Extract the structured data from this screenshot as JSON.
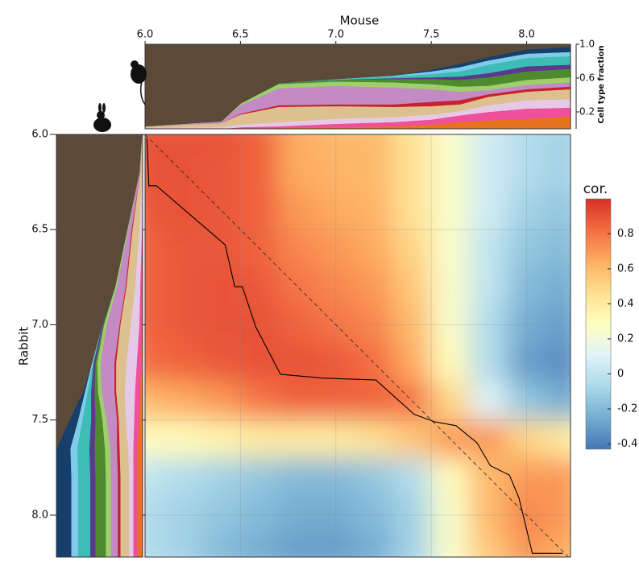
{
  "chart_data": [
    {
      "type": "heatmap",
      "x_label": "Mouse",
      "y_label": "Rabbit",
      "x": [
        6.0,
        6.2,
        6.4,
        6.6,
        6.8,
        7.0,
        7.2,
        7.4,
        7.6,
        7.8,
        8.0,
        8.2
      ],
      "y": [
        6.0,
        6.2,
        6.4,
        6.6,
        6.8,
        7.0,
        7.2,
        7.4,
        7.6,
        7.8,
        8.0,
        8.2
      ],
      "z": [
        [
          0.9,
          0.9,
          0.9,
          0.85,
          0.65,
          0.6,
          0.6,
          0.45,
          0.25,
          0.05,
          -0.05,
          -0.1
        ],
        [
          0.9,
          0.9,
          0.88,
          0.85,
          0.65,
          0.62,
          0.6,
          0.45,
          0.25,
          0.05,
          -0.05,
          -0.1
        ],
        [
          0.88,
          0.9,
          0.88,
          0.85,
          0.7,
          0.65,
          0.62,
          0.45,
          0.25,
          0.05,
          -0.1,
          -0.15
        ],
        [
          0.85,
          0.88,
          0.88,
          0.85,
          0.75,
          0.7,
          0.65,
          0.5,
          0.25,
          0.0,
          -0.15,
          -0.2
        ],
        [
          0.85,
          0.88,
          0.9,
          0.88,
          0.8,
          0.75,
          0.7,
          0.55,
          0.25,
          0.0,
          -0.2,
          -0.25
        ],
        [
          0.85,
          0.88,
          0.9,
          0.9,
          0.85,
          0.8,
          0.75,
          0.6,
          0.25,
          -0.05,
          -0.25,
          -0.3
        ],
        [
          0.82,
          0.85,
          0.88,
          0.9,
          0.9,
          0.88,
          0.82,
          0.65,
          0.3,
          -0.05,
          -0.3,
          -0.35
        ],
        [
          0.6,
          0.65,
          0.7,
          0.8,
          0.85,
          0.85,
          0.85,
          0.8,
          0.5,
          0.1,
          -0.15,
          -0.25
        ],
        [
          0.3,
          0.3,
          0.35,
          0.4,
          0.4,
          0.4,
          0.45,
          0.55,
          0.7,
          0.7,
          0.5,
          0.4
        ],
        [
          0.0,
          -0.05,
          -0.1,
          -0.15,
          -0.2,
          -0.2,
          -0.15,
          -0.05,
          0.3,
          0.6,
          0.7,
          0.7
        ],
        [
          -0.05,
          -0.1,
          -0.15,
          -0.2,
          -0.25,
          -0.25,
          -0.2,
          -0.1,
          0.25,
          0.6,
          0.75,
          0.7
        ],
        [
          -0.05,
          -0.1,
          -0.2,
          -0.25,
          -0.3,
          -0.3,
          -0.25,
          -0.1,
          0.25,
          0.55,
          0.7,
          0.65
        ]
      ],
      "xlim": [
        6.0,
        8.23
      ],
      "ylim": [
        6.0,
        8.22
      ],
      "xticks": [
        {
          "value": 6.0,
          "label": "6.0"
        },
        6.5,
        {
          "value": 7.0,
          "label": "7.0"
        },
        7.5,
        {
          "value": 8.0,
          "label": "8.0"
        }
      ],
      "yticks": [
        {
          "value": 6.0,
          "label": "6.0"
        },
        6.5,
        {
          "value": 7.0,
          "label": "7.0"
        },
        7.5,
        {
          "value": 8.0,
          "label": "8.0"
        }
      ],
      "grid": true,
      "colorbar": {
        "label": "cor.",
        "clim": [
          -0.43,
          1.0
        ],
        "ticks": [
          -0.4,
          -0.2,
          0,
          0.2,
          0.4,
          0.6,
          0.8
        ],
        "colors": [
          "#4575b4",
          "#74add1",
          "#abd9e9",
          "#e0f3f8",
          "#ffffbf",
          "#fee090",
          "#fdae61",
          "#f46d43",
          "#d73027"
        ]
      },
      "path": {
        "color": "#000000",
        "x": [
          6.01,
          6.02,
          6.06,
          6.42,
          6.47,
          6.51,
          6.58,
          6.71,
          6.93,
          7.21,
          7.41,
          7.52,
          7.63,
          7.74,
          7.81,
          7.91,
          7.96,
          8.03,
          8.19
        ],
        "y": [
          6.02,
          6.27,
          6.27,
          6.58,
          6.8,
          6.8,
          7.01,
          7.26,
          7.28,
          7.29,
          7.47,
          7.51,
          7.53,
          7.62,
          7.74,
          7.79,
          7.91,
          8.2,
          8.2
        ]
      },
      "diagonal": true
    },
    {
      "type": "area",
      "y_label": "Cell type fraction",
      "x": [
        6.0,
        6.4,
        6.5,
        6.7,
        7.0,
        7.3,
        7.5,
        7.65,
        7.8,
        8.0,
        8.23
      ],
      "xlim": [
        6.0,
        8.23
      ],
      "ylim": [
        0,
        1
      ],
      "yticks": [
        0.2,
        0.6,
        {
          "value": 1.0,
          "label": "1.0"
        }
      ],
      "series": [
        {
          "color": "#e8731e",
          "values": [
            0.0,
            0.0,
            0.01,
            0.01,
            0.02,
            0.03,
            0.05,
            0.08,
            0.1,
            0.12,
            0.15
          ]
        },
        {
          "color": "#ef4f9b",
          "values": [
            0.0,
            0.0,
            0.01,
            0.02,
            0.04,
            0.05,
            0.06,
            0.08,
            0.1,
            0.12,
            0.1
          ]
        },
        {
          "color": "#e6c9e6",
          "values": [
            0.01,
            0.02,
            0.03,
            0.05,
            0.06,
            0.06,
            0.06,
            0.05,
            0.08,
            0.1,
            0.1
          ]
        },
        {
          "color": "#dcc08f",
          "values": [
            0.02,
            0.05,
            0.12,
            0.18,
            0.15,
            0.12,
            0.1,
            0.08,
            0.1,
            0.1,
            0.12
          ]
        },
        {
          "color": "#c8202c",
          "values": [
            0.0,
            0.0,
            0.01,
            0.02,
            0.02,
            0.03,
            0.05,
            0.05,
            0.03,
            0.03,
            0.03
          ]
        },
        {
          "color": "#c48ac4",
          "values": [
            0.0,
            0.02,
            0.1,
            0.2,
            0.22,
            0.2,
            0.15,
            0.1,
            0.05,
            0.05,
            0.05
          ]
        },
        {
          "color": "#9dd06a",
          "values": [
            0.0,
            0.0,
            0.02,
            0.05,
            0.05,
            0.06,
            0.06,
            0.06,
            0.05,
            0.06,
            0.06
          ]
        },
        {
          "color": "#4f8a2e",
          "values": [
            0.0,
            0.0,
            0.0,
            0.01,
            0.02,
            0.04,
            0.06,
            0.08,
            0.1,
            0.1,
            0.1
          ]
        },
        {
          "color": "#5a3a8c",
          "values": [
            0.0,
            0.0,
            0.0,
            0.0,
            0.0,
            0.01,
            0.02,
            0.04,
            0.05,
            0.06,
            0.05
          ]
        },
        {
          "color": "#3dbdb5",
          "values": [
            0.0,
            0.0,
            0.0,
            0.0,
            0.01,
            0.02,
            0.04,
            0.06,
            0.1,
            0.1,
            0.1
          ]
        },
        {
          "color": "#7fcbea",
          "values": [
            0.0,
            0.0,
            0.0,
            0.0,
            0.0,
            0.01,
            0.03,
            0.05,
            0.05,
            0.05,
            0.05
          ]
        },
        {
          "color": "#16406b",
          "values": [
            0.0,
            0.0,
            0.0,
            0.0,
            0.0,
            0.0,
            0.02,
            0.04,
            0.04,
            0.05,
            0.06
          ]
        },
        {
          "color": "#5c4a38",
          "values": [
            0.97,
            0.91,
            0.7,
            0.46,
            0.41,
            0.37,
            0.3,
            0.23,
            0.15,
            0.06,
            0.03
          ]
        }
      ]
    },
    {
      "type": "area",
      "orientation": "horizontal",
      "y": [
        6.0,
        6.2,
        6.5,
        6.8,
        7.0,
        7.2,
        7.35,
        7.5,
        7.65,
        7.8,
        8.0,
        8.22
      ],
      "xlim": [
        1,
        0
      ],
      "ylim": [
        6.0,
        8.22
      ],
      "series": [
        {
          "color": "#e8731e",
          "values": [
            0.0,
            0.0,
            0.0,
            0.01,
            0.01,
            0.02,
            0.03,
            0.04,
            0.06,
            0.06,
            0.06,
            0.06
          ]
        },
        {
          "color": "#ef4f9b",
          "values": [
            0.0,
            0.0,
            0.01,
            0.02,
            0.03,
            0.05,
            0.06,
            0.06,
            0.05,
            0.05,
            0.05,
            0.05
          ]
        },
        {
          "color": "#e6c9e6",
          "values": [
            0.0,
            0.01,
            0.03,
            0.06,
            0.1,
            0.12,
            0.12,
            0.1,
            0.06,
            0.05,
            0.05,
            0.05
          ]
        },
        {
          "color": "#dcc08f",
          "values": [
            0.01,
            0.02,
            0.08,
            0.1,
            0.12,
            0.12,
            0.1,
            0.08,
            0.1,
            0.1,
            0.1,
            0.1
          ]
        },
        {
          "color": "#c8202c",
          "values": [
            0.0,
            0.0,
            0.01,
            0.01,
            0.01,
            0.02,
            0.02,
            0.02,
            0.03,
            0.03,
            0.03,
            0.03
          ]
        },
        {
          "color": "#c48ac4",
          "values": [
            0.0,
            0.01,
            0.04,
            0.1,
            0.15,
            0.16,
            0.15,
            0.12,
            0.08,
            0.08,
            0.08,
            0.08
          ]
        },
        {
          "color": "#9dd06a",
          "values": [
            0.0,
            0.0,
            0.01,
            0.02,
            0.03,
            0.04,
            0.04,
            0.05,
            0.06,
            0.06,
            0.06,
            0.06
          ]
        },
        {
          "color": "#4f8a2e",
          "values": [
            0.0,
            0.0,
            0.0,
            0.0,
            0.01,
            0.02,
            0.04,
            0.08,
            0.12,
            0.12,
            0.12,
            0.12
          ]
        },
        {
          "color": "#5a3a8c",
          "values": [
            0.0,
            0.0,
            0.0,
            0.0,
            0.01,
            0.02,
            0.04,
            0.05,
            0.06,
            0.06,
            0.06,
            0.06
          ]
        },
        {
          "color": "#3dbdb5",
          "values": [
            0.0,
            0.0,
            0.0,
            0.0,
            0.0,
            0.01,
            0.04,
            0.1,
            0.14,
            0.14,
            0.14,
            0.14
          ]
        },
        {
          "color": "#7fcbea",
          "values": [
            0.0,
            0.0,
            0.0,
            0.0,
            0.0,
            0.01,
            0.03,
            0.05,
            0.08,
            0.08,
            0.08,
            0.08
          ]
        },
        {
          "color": "#16406b",
          "values": [
            0.0,
            0.0,
            0.0,
            0.0,
            0.0,
            0.0,
            0.02,
            0.1,
            0.16,
            0.17,
            0.17,
            0.17
          ]
        },
        {
          "color": "#5c4a38",
          "values": [
            0.99,
            0.96,
            0.82,
            0.68,
            0.53,
            0.41,
            0.31,
            0.15,
            0.0,
            0.0,
            0.0,
            0.0
          ]
        }
      ]
    }
  ]
}
